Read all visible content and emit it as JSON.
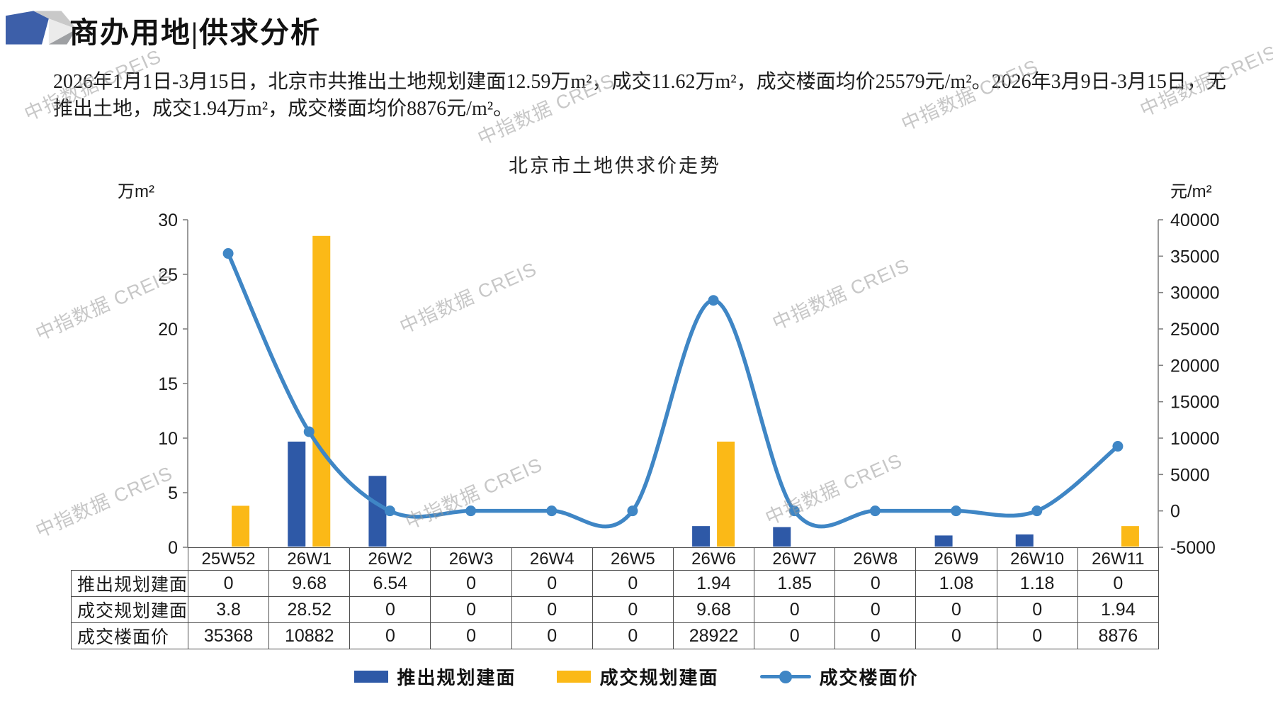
{
  "header": {
    "title": "商办用地|供求分析"
  },
  "summary": {
    "lines": [
      "2026年1月1日-3月15日，北京市共推出土地规划建面12.59万m²，成交11.62万m²，成交楼面均价25579元/m²。2026年3月9日-3月15日，无",
      "推出土地，成交1.94万m²，成交楼面均价8876元/m²。"
    ]
  },
  "watermark_text": "中指数据 CREIS",
  "chart_data": {
    "type": "bar",
    "subtype": "combo bar+line, dual axis",
    "title": "北京市土地供求价走势",
    "categories": [
      "25W52",
      "26W1",
      "26W2",
      "26W3",
      "26W4",
      "26W5",
      "26W6",
      "26W7",
      "26W8",
      "26W9",
      "26W10",
      "26W11"
    ],
    "left_axis": {
      "unit": "万m²",
      "min": 0,
      "max": 30,
      "step": 5,
      "labels": [
        "30",
        "25",
        "20",
        "15",
        "10",
        "5",
        "0"
      ]
    },
    "right_axis": {
      "unit": "元/m²",
      "min": -5000,
      "max": 40000,
      "step": 5000,
      "labels": [
        "40000",
        "35000",
        "30000",
        "25000",
        "20000",
        "15000",
        "10000",
        "5000",
        "0",
        "-5000"
      ]
    },
    "series": [
      {
        "name": "推出规划建面",
        "type": "bar",
        "axis": "left",
        "color": "#2E59A7",
        "values": [
          0,
          9.68,
          6.54,
          0,
          0,
          0,
          1.94,
          1.85,
          0,
          1.08,
          1.18,
          0
        ]
      },
      {
        "name": "成交规划建面",
        "type": "bar",
        "axis": "left",
        "color": "#FBB917",
        "values": [
          3.8,
          28.52,
          0,
          0,
          0,
          0,
          9.68,
          0,
          0,
          0,
          0,
          1.94
        ]
      },
      {
        "name": "成交楼面价",
        "type": "line",
        "axis": "right",
        "color": "#3F86C5",
        "values": [
          35368,
          10882,
          0,
          0,
          0,
          0,
          28922,
          0,
          0,
          0,
          0,
          8876
        ]
      }
    ],
    "grid": false,
    "legend_position": "bottom"
  },
  "table": {
    "row_labels": [
      "推出规划建面",
      "成交规划建面",
      "成交楼面价"
    ],
    "rows": [
      [
        "0",
        "9.68",
        "6.54",
        "0",
        "0",
        "0",
        "1.94",
        "1.85",
        "0",
        "1.08",
        "1.18",
        "0"
      ],
      [
        "3.8",
        "28.52",
        "0",
        "0",
        "0",
        "0",
        "9.68",
        "0",
        "0",
        "0",
        "0",
        "1.94"
      ],
      [
        "35368",
        "10882",
        "0",
        "0",
        "0",
        "0",
        "28922",
        "0",
        "0",
        "0",
        "0",
        "8876"
      ]
    ]
  },
  "colors": {
    "bar_supply": "#2E59A7",
    "bar_deal": "#FBB917",
    "price_line": "#3F86C5",
    "axis": "#808080",
    "table_border": "#4d4d4d",
    "logo_blue": "#3D5FA9"
  }
}
